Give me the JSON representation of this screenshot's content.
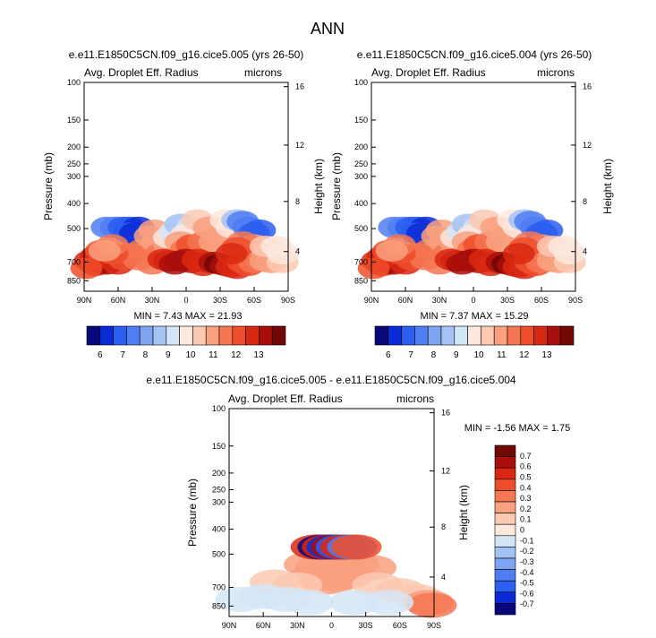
{
  "page": {
    "title": "ANN"
  },
  "colors": {
    "scale": [
      "#08087a",
      "#0a2ad6",
      "#2c5ef0",
      "#4f7ef2",
      "#7ea3f3",
      "#a5c2f5",
      "#d3e6f7",
      "#fde8de",
      "#fcc9b2",
      "#f9a07e",
      "#f57652",
      "#ee4d2b",
      "#d92812",
      "#a80e0a",
      "#710806"
    ]
  },
  "chart_data": [
    {
      "id": "panel-a",
      "type": "heatmap",
      "title": "e.e11.E1850C5CN.f09_g16.cice5.005 (yrs 26-50)",
      "left_label": "Avg. Droplet Eff. Radius",
      "right_label": "microns",
      "ylabel": "Pressure (mb)",
      "ylabel_right": "Height (km)",
      "x_ticks": [
        "90N",
        "60N",
        "30N",
        "0",
        "30S",
        "60S",
        "90S"
      ],
      "y_ticks": [
        "100",
        "150",
        "200",
        "250",
        "300",
        "400",
        "500",
        "700",
        "850"
      ],
      "y_ticks_right": [
        "16",
        "12",
        "8",
        "4"
      ],
      "min_max": "MIN =  7.43  MAX =  21.93",
      "colorbar_labels": [
        "6",
        "7",
        "8",
        "9",
        "10",
        "11",
        "12",
        "13"
      ],
      "cells": [
        [
          70,
          40,
          3
        ],
        [
          62,
          40,
          3
        ],
        [
          55,
          40,
          2
        ],
        [
          50,
          40,
          2
        ],
        [
          42,
          40,
          1
        ],
        [
          50,
          36,
          2
        ],
        [
          45,
          36,
          1
        ],
        [
          80,
          14,
          12
        ],
        [
          75,
          16,
          13
        ],
        [
          70,
          15,
          13
        ],
        [
          85,
          17,
          12
        ],
        [
          80,
          20,
          12
        ],
        [
          75,
          24,
          11
        ],
        [
          60,
          15,
          12
        ],
        [
          55,
          18,
          11
        ],
        [
          50,
          22,
          11
        ],
        [
          42,
          18,
          10
        ],
        [
          38,
          25,
          10
        ],
        [
          25,
          30,
          9
        ],
        [
          32,
          34,
          9
        ],
        [
          28,
          38,
          9
        ],
        [
          30,
          15,
          10
        ],
        [
          22,
          22,
          10
        ],
        [
          15,
          28,
          9
        ],
        [
          15,
          33,
          7
        ],
        [
          10,
          37,
          6
        ],
        [
          5,
          42,
          5
        ],
        [
          -5,
          40,
          6
        ],
        [
          0,
          35,
          7
        ],
        [
          -10,
          45,
          8
        ],
        [
          -25,
          40,
          8
        ],
        [
          5,
          30,
          9
        ],
        [
          0,
          25,
          10
        ],
        [
          -5,
          28,
          11
        ],
        [
          -15,
          30,
          10
        ],
        [
          -20,
          40,
          9
        ],
        [
          -25,
          30,
          9
        ],
        [
          -30,
          34,
          9
        ],
        [
          -35,
          45,
          7
        ],
        [
          -40,
          40,
          7
        ],
        [
          -45,
          45,
          5
        ],
        [
          -50,
          44,
          3
        ],
        [
          -55,
          40,
          3
        ],
        [
          -60,
          36,
          2
        ],
        [
          -65,
          38,
          2
        ],
        [
          15,
          17,
          13
        ],
        [
          20,
          18,
          12
        ],
        [
          10,
          15,
          13
        ],
        [
          5,
          17,
          13
        ],
        [
          0,
          18,
          13
        ],
        [
          -5,
          16,
          13
        ],
        [
          -10,
          18,
          12
        ],
        [
          -15,
          14,
          12
        ],
        [
          -20,
          16,
          12
        ],
        [
          -25,
          16,
          13
        ],
        [
          -30,
          15,
          14
        ],
        [
          -35,
          14,
          13
        ],
        [
          -40,
          13,
          12
        ],
        [
          -45,
          12,
          12
        ],
        [
          -50,
          16,
          11
        ],
        [
          -55,
          14,
          11
        ],
        [
          -60,
          16,
          10
        ],
        [
          -65,
          18,
          10
        ],
        [
          -70,
          17,
          9
        ],
        [
          -75,
          16,
          9
        ],
        [
          -60,
          28,
          9
        ],
        [
          -50,
          30,
          10
        ],
        [
          -45,
          26,
          11
        ],
        [
          -40,
          22,
          12
        ],
        [
          -70,
          27,
          8
        ],
        [
          -85,
          16,
          8
        ],
        [
          -85,
          22,
          7
        ],
        [
          -80,
          27,
          7
        ],
        [
          65,
          22,
          11
        ],
        [
          65,
          28,
          10
        ],
        [
          72,
          24,
          9
        ],
        [
          88,
          12,
          11
        ]
      ]
    },
    {
      "id": "panel-b",
      "type": "heatmap",
      "title": "e.e11.E1850C5CN.f09_g16.cice5.004 (yrs 26-50)",
      "left_label": "Avg. Droplet Eff. Radius",
      "right_label": "microns",
      "ylabel": "Pressure (mb)",
      "ylabel_right": "Height (km)",
      "x_ticks": [
        "90N",
        "60N",
        "30N",
        "0",
        "30S",
        "60S",
        "90S"
      ],
      "y_ticks": [
        "100",
        "150",
        "200",
        "250",
        "300",
        "400",
        "500",
        "700",
        "850"
      ],
      "y_ticks_right": [
        "16",
        "12",
        "8",
        "4"
      ],
      "min_max": "MIN =  7.37  MAX =  15.29",
      "colorbar_labels": [
        "6",
        "7",
        "8",
        "9",
        "10",
        "11",
        "12",
        "13"
      ],
      "cells": [
        [
          70,
          40,
          3
        ],
        [
          62,
          40,
          3
        ],
        [
          55,
          40,
          2
        ],
        [
          50,
          40,
          2
        ],
        [
          42,
          40,
          1
        ],
        [
          50,
          36,
          2
        ],
        [
          45,
          36,
          1
        ],
        [
          80,
          14,
          12
        ],
        [
          75,
          16,
          13
        ],
        [
          70,
          15,
          13
        ],
        [
          85,
          17,
          12
        ],
        [
          80,
          20,
          12
        ],
        [
          75,
          24,
          11
        ],
        [
          60,
          15,
          12
        ],
        [
          55,
          18,
          11
        ],
        [
          50,
          22,
          11
        ],
        [
          42,
          18,
          10
        ],
        [
          38,
          25,
          10
        ],
        [
          25,
          30,
          9
        ],
        [
          32,
          34,
          9
        ],
        [
          28,
          38,
          9
        ],
        [
          30,
          15,
          10
        ],
        [
          22,
          22,
          10
        ],
        [
          15,
          28,
          9
        ],
        [
          15,
          33,
          7
        ],
        [
          10,
          37,
          6
        ],
        [
          5,
          42,
          5
        ],
        [
          -5,
          40,
          6
        ],
        [
          0,
          35,
          7
        ],
        [
          -10,
          45,
          8
        ],
        [
          -25,
          40,
          8
        ],
        [
          5,
          30,
          9
        ],
        [
          0,
          25,
          10
        ],
        [
          -5,
          28,
          11
        ],
        [
          -15,
          30,
          10
        ],
        [
          -20,
          40,
          9
        ],
        [
          -25,
          30,
          9
        ],
        [
          -30,
          34,
          9
        ],
        [
          -35,
          45,
          7
        ],
        [
          -40,
          40,
          7
        ],
        [
          -45,
          45,
          5
        ],
        [
          -50,
          44,
          3
        ],
        [
          -55,
          40,
          3
        ],
        [
          -60,
          36,
          2
        ],
        [
          -65,
          38,
          2
        ],
        [
          15,
          17,
          13
        ],
        [
          20,
          18,
          12
        ],
        [
          10,
          15,
          13
        ],
        [
          5,
          17,
          13
        ],
        [
          0,
          18,
          13
        ],
        [
          -5,
          16,
          13
        ],
        [
          -10,
          18,
          12
        ],
        [
          -15,
          14,
          12
        ],
        [
          -20,
          16,
          12
        ],
        [
          -25,
          16,
          13
        ],
        [
          -30,
          15,
          14
        ],
        [
          -35,
          14,
          13
        ],
        [
          -40,
          13,
          12
        ],
        [
          -45,
          12,
          12
        ],
        [
          -50,
          16,
          11
        ],
        [
          -55,
          14,
          11
        ],
        [
          -60,
          16,
          10
        ],
        [
          -65,
          18,
          10
        ],
        [
          -70,
          17,
          9
        ],
        [
          -75,
          16,
          9
        ],
        [
          -60,
          28,
          9
        ],
        [
          -50,
          30,
          10
        ],
        [
          -45,
          26,
          11
        ],
        [
          -40,
          22,
          12
        ],
        [
          -70,
          27,
          8
        ],
        [
          -85,
          16,
          8
        ],
        [
          -85,
          22,
          7
        ],
        [
          -80,
          27,
          7
        ],
        [
          65,
          22,
          11
        ],
        [
          65,
          28,
          10
        ],
        [
          72,
          24,
          9
        ],
        [
          88,
          12,
          11
        ]
      ]
    },
    {
      "id": "panel-c",
      "type": "heatmap",
      "title": "e.e11.E1850C5CN.f09_g16.cice5.005 - e.e11.E1850C5CN.f09_g16.cice5.004",
      "left_label": "Avg. Droplet Eff. Radius",
      "right_label": "microns",
      "ylabel": "Pressure (mb)",
      "ylabel_right": "Height (km)",
      "x_ticks": [
        "90N",
        "60N",
        "30N",
        "0",
        "30S",
        "60S",
        "90S"
      ],
      "y_ticks": [
        "100",
        "150",
        "200",
        "250",
        "300",
        "400",
        "500",
        "700",
        "850"
      ],
      "y_ticks_right": [
        "16",
        "12",
        "8",
        "4"
      ],
      "min_max": "MIN =  -1.56  MAX =   1.75",
      "colorbar_labels": [
        "0.7",
        "0.6",
        "0.5",
        "0.4",
        "0.3",
        "0.2",
        "0.1",
        "0",
        "-0.1",
        "-0.2",
        "-0.3",
        "-0.4",
        "-0.5",
        "-0.6",
        "-0.7"
      ],
      "cells": [
        [
          20,
          32,
          9
        ],
        [
          10,
          30,
          9
        ],
        [
          0,
          30,
          9
        ],
        [
          -10,
          30,
          9
        ],
        [
          -20,
          32,
          9
        ],
        [
          15,
          24,
          9
        ],
        [
          5,
          20,
          9
        ],
        [
          -5,
          22,
          9
        ],
        [
          -15,
          24,
          9
        ],
        [
          -35,
          30,
          9
        ],
        [
          50,
          20,
          8
        ],
        [
          30,
          18,
          8
        ],
        [
          -40,
          18,
          8
        ],
        [
          -60,
          14,
          8
        ],
        [
          -75,
          10,
          8
        ],
        [
          -85,
          6,
          9
        ],
        [
          -88,
          4,
          10
        ],
        [
          60,
          10,
          6
        ],
        [
          40,
          8,
          6
        ],
        [
          20,
          6,
          6
        ],
        [
          -20,
          6,
          6
        ],
        [
          -50,
          6,
          6
        ],
        [
          80,
          8,
          6
        ],
        [
          14,
          44,
          12
        ],
        [
          8,
          44,
          0
        ],
        [
          4,
          44,
          12
        ],
        [
          0,
          44,
          1
        ],
        [
          -4,
          44,
          13
        ],
        [
          -8,
          44,
          2
        ],
        [
          -12,
          44,
          12
        ],
        [
          -18,
          44,
          3
        ],
        [
          -22,
          44,
          11
        ]
      ]
    }
  ]
}
